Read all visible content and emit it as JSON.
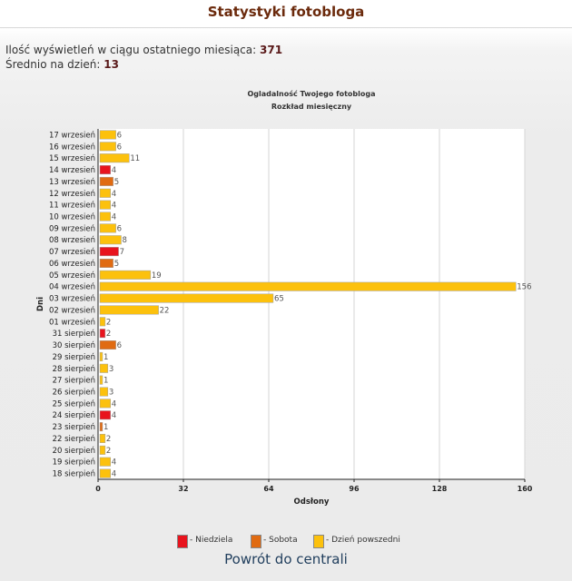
{
  "page": {
    "title": "Statystyki fotobloga",
    "back_link": "Powrót do centrali"
  },
  "stats": {
    "month_views_label": "Ilość wyświetleń w ciągu ostatniego miesiąca:",
    "month_views_value": "371",
    "daily_avg_label": "Średnio na dzień:",
    "daily_avg_value": "13"
  },
  "colors": {
    "sunday": "#e8141e",
    "saturday": "#e06b12",
    "weekday": "#fcc10d",
    "title_color": "#6b2a0c",
    "link_color": "#1f3d5c"
  },
  "chart_data": {
    "type": "bar",
    "orientation": "horizontal",
    "title": "Ogladalność Twojego fotobloga",
    "subtitle": "Rozkład miesięczny",
    "xlabel": "Odsłony",
    "ylabel": "Dni",
    "xlim": [
      0,
      160
    ],
    "xticks": [
      "0",
      "32",
      "64",
      "96",
      "128",
      "160"
    ],
    "grid": true,
    "legend_placement": "bottom",
    "categories": [
      "17 wrzesień",
      "16 wrzesień",
      "15 wrzesień",
      "14 wrzesień",
      "13 wrzesień",
      "12 wrzesień",
      "11 wrzesień",
      "10 wrzesień",
      "09 wrzesień",
      "08 wrzesień",
      "07 wrzesień",
      "06 wrzesień",
      "05 wrzesień",
      "04 wrzesień",
      "03 wrzesień",
      "02 wrzesień",
      "01 wrzesień",
      "31 sierpień",
      "30 sierpień",
      "29 sierpień",
      "28 sierpień",
      "27 sierpień",
      "26 sierpień",
      "25 sierpień",
      "24 sierpień",
      "23 sierpień",
      "22 sierpień",
      "20 sierpień",
      "19 sierpień",
      "18 sierpień"
    ],
    "values": [
      6,
      6,
      11,
      4,
      5,
      4,
      4,
      4,
      6,
      8,
      7,
      5,
      19,
      156,
      65,
      22,
      2,
      2,
      6,
      1,
      3,
      1,
      3,
      4,
      4,
      1,
      2,
      2,
      4,
      4
    ],
    "day_types": [
      "weekday",
      "weekday",
      "weekday",
      "sunday",
      "saturday",
      "weekday",
      "weekday",
      "weekday",
      "weekday",
      "weekday",
      "sunday",
      "saturday",
      "weekday",
      "weekday",
      "weekday",
      "weekday",
      "weekday",
      "sunday",
      "saturday",
      "weekday",
      "weekday",
      "weekday",
      "weekday",
      "weekday",
      "sunday",
      "saturday",
      "weekday",
      "weekday",
      "weekday",
      "weekday"
    ],
    "legend": [
      {
        "type": "sunday",
        "label": "- Niedziela"
      },
      {
        "type": "saturday",
        "label": "- Sobota"
      },
      {
        "type": "weekday",
        "label": "- Dzień powszedni"
      }
    ]
  }
}
